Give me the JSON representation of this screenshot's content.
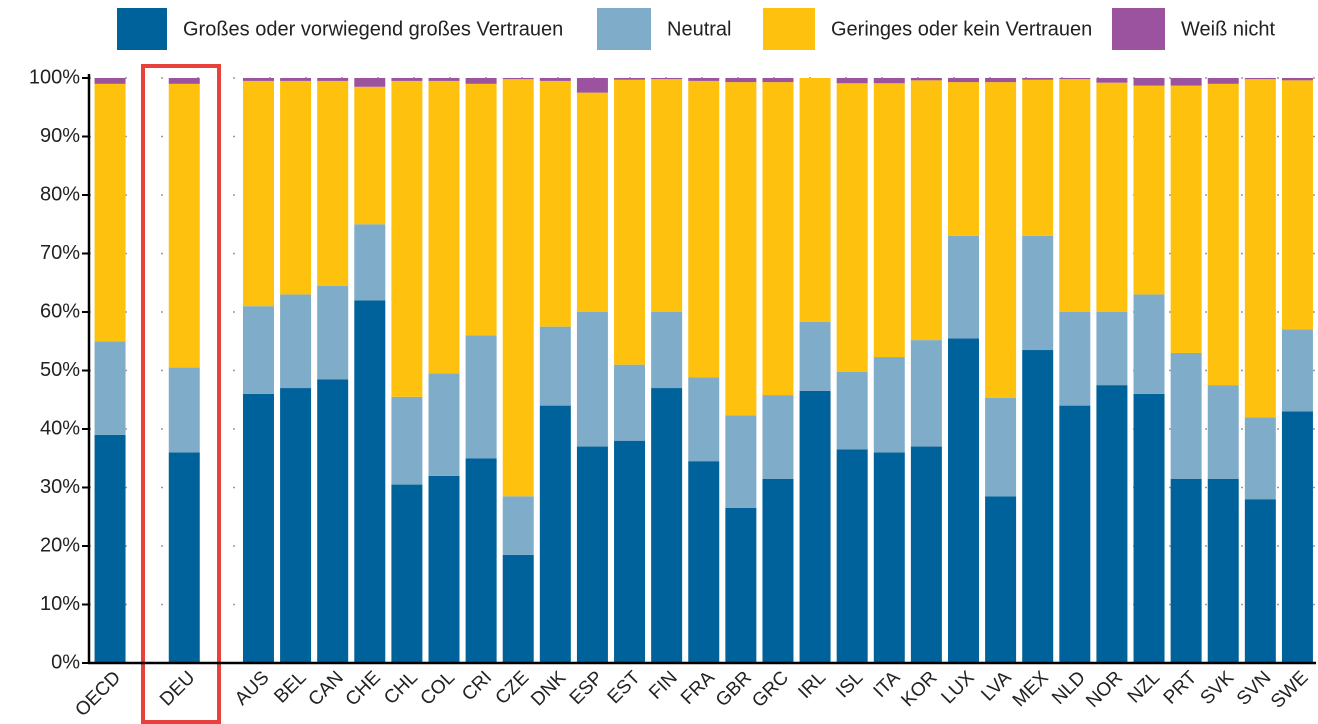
{
  "chart_data": {
    "type": "stacked_bar",
    "categories": [
      "OECD",
      null,
      "DEU",
      null,
      "AUS",
      "BEL",
      "CAN",
      "CHE",
      "CHL",
      "COL",
      "CRI",
      "CZE",
      "DNK",
      "ESP",
      "EST",
      "FIN",
      "FRA",
      "GBR",
      "GRC",
      "IRL",
      "ISL",
      "ITA",
      "KOR",
      "LUX",
      "LVA",
      "MEX",
      "NLD",
      "NOR",
      "NZL",
      "PRT",
      "SVK",
      "SVN",
      "SWE"
    ],
    "series": [
      {
        "name": "Großes oder vorwiegend großes Vertrauen",
        "color": "#00629b",
        "values": [
          39,
          null,
          36,
          null,
          46,
          47,
          48.5,
          62,
          30.5,
          32,
          35,
          18.5,
          44,
          37,
          38,
          47,
          34.5,
          26.5,
          31.5,
          46.5,
          36.5,
          36,
          37,
          55.5,
          28.5,
          53.5,
          44,
          47.5,
          46,
          31.5,
          31.5,
          28,
          43
        ]
      },
      {
        "name": "Neutral",
        "color": "#7fadc9",
        "values": [
          16,
          null,
          14.5,
          null,
          15,
          16,
          16,
          13,
          15,
          17.5,
          21,
          10,
          13.5,
          23,
          13,
          13,
          14.3,
          15.8,
          14.3,
          11.8,
          13.3,
          16.3,
          18.2,
          17.5,
          16.8,
          19.5,
          16,
          12.5,
          17,
          21.5,
          16,
          14,
          14
        ]
      },
      {
        "name": "Geringes oder kein Vertrauen",
        "color": "#fec10e",
        "values": [
          44,
          null,
          48.5,
          null,
          38.5,
          36.5,
          35,
          23.5,
          54,
          50,
          43,
          71.3,
          42,
          37.5,
          48.7,
          39.8,
          50.7,
          57,
          53.5,
          41.7,
          49.3,
          46.8,
          44.4,
          26.3,
          54,
          26.7,
          39.8,
          39.2,
          35.7,
          45.7,
          51.5,
          57.8,
          42.6
        ]
      },
      {
        "name": "Weiß nicht",
        "color": "#9b53a0",
        "values": [
          1,
          null,
          1,
          null,
          0.5,
          0.5,
          0.5,
          1.5,
          0.5,
          0.5,
          1,
          0.2,
          0.5,
          2.5,
          0.3,
          0.2,
          0.5,
          0.7,
          0.7,
          0,
          0.9,
          0.9,
          0.4,
          0.7,
          0.7,
          0.3,
          0.2,
          0.8,
          1.3,
          1.3,
          1,
          0.2,
          0.4
        ]
      }
    ],
    "ylim": [
      0,
      100
    ],
    "yticks": [
      {
        "value": 0,
        "label": "0%"
      },
      {
        "value": 10,
        "label": "10%"
      },
      {
        "value": 20,
        "label": "20%"
      },
      {
        "value": 30,
        "label": "30%"
      },
      {
        "value": 40,
        "label": "40%"
      },
      {
        "value": 50,
        "label": "50%"
      },
      {
        "value": 60,
        "label": "60%"
      },
      {
        "value": 70,
        "label": "70%"
      },
      {
        "value": 80,
        "label": "80%"
      },
      {
        "value": 90,
        "label": "90%"
      },
      {
        "value": 100,
        "label": "100%"
      }
    ],
    "grid": true,
    "legend": "top"
  }
}
